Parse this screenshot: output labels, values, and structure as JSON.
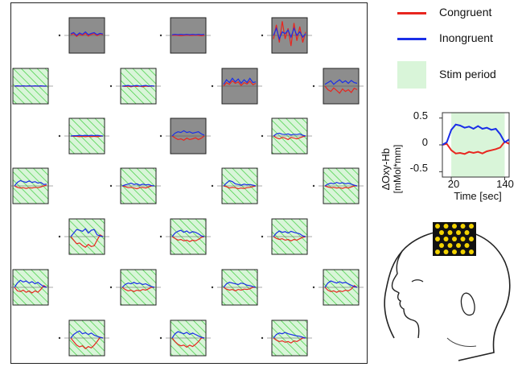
{
  "legend": {
    "congruent_label": "Congruent",
    "incongruent_label": "Inongruent",
    "stim_label": "Stim period"
  },
  "colors": {
    "congruent": "#e8261f",
    "incongruent": "#1a2ee8",
    "stim": "#d9f5d9",
    "stim_hatch": "#3fcf3f",
    "inactive_bg": "#8d8d8d",
    "probe_grid": "#111111",
    "probe_dot": "#f2d200"
  },
  "example_plot": {
    "ylabel_line1": "∆Oxy-Hb",
    "ylabel_line2": "[mMol*mm]",
    "xlabel": "Time [sec]",
    "ytick_labels": [
      "0.5",
      "0",
      "-0.5"
    ],
    "xtick_labels": [
      "20",
      "140"
    ]
  },
  "chart_data": {
    "type": "line",
    "title": "",
    "xlabel": "Time [sec]",
    "ylabel": "∆Oxy-Hb [mMol*mm]",
    "xlim": [
      0,
      150
    ],
    "ylim": [
      -0.6,
      0.6
    ],
    "stim_period": [
      20,
      140
    ],
    "x": [
      0,
      10,
      20,
      30,
      40,
      50,
      60,
      70,
      80,
      90,
      100,
      110,
      120,
      130,
      140,
      150
    ],
    "series": [
      {
        "name": "Congruent",
        "values": [
          0.0,
          0.02,
          -0.1,
          -0.16,
          -0.15,
          -0.17,
          -0.13,
          -0.15,
          -0.13,
          -0.16,
          -0.12,
          -0.1,
          -0.08,
          -0.05,
          0.06,
          0.02
        ]
      },
      {
        "name": "Inongruent",
        "values": [
          0.0,
          0.05,
          0.28,
          0.38,
          0.36,
          0.32,
          0.34,
          0.3,
          0.35,
          0.3,
          0.32,
          0.28,
          0.3,
          0.2,
          0.05,
          0.1
        ]
      }
    ],
    "channel_rows": [
      [
        {
          "active": false,
          "c": [
            0.02,
            0.05,
            -0.03,
            0.04,
            0.0,
            0.06,
            -0.02,
            0.03,
            0.05,
            -0.01,
            0.04,
            0.02
          ],
          "i": [
            0.05,
            0.08,
            0.0,
            0.07,
            0.03,
            0.1,
            0.02,
            0.06,
            0.08,
            0.02,
            0.06,
            0.04
          ]
        },
        {
          "active": false,
          "c": [
            0.0,
            0.01,
            0.0,
            -0.01,
            0.0,
            0.01,
            0.0,
            0.0,
            0.01,
            0.0,
            -0.01,
            0.0
          ],
          "i": [
            0.02,
            0.03,
            0.02,
            0.03,
            0.02,
            0.03,
            0.02,
            0.03,
            0.02,
            0.03,
            0.02,
            0.03
          ]
        },
        {
          "active": false,
          "c": [
            -0.1,
            0.3,
            -0.2,
            0.4,
            -0.1,
            0.2,
            -0.3,
            0.35,
            -0.15,
            0.25,
            -0.2,
            0.1
          ],
          "i": [
            0.0,
            0.2,
            -0.1,
            0.1,
            0.05,
            0.15,
            -0.05,
            0.2,
            0.0,
            0.1,
            -0.05,
            0.05
          ]
        }
      ],
      [
        {
          "active": true,
          "c": [
            0.0,
            0.0,
            0.0,
            0.0,
            0.0,
            0.0,
            0.0,
            0.0,
            0.0,
            0.0,
            0.0,
            0.0
          ],
          "i": [
            0.0,
            0.01,
            0.0,
            0.01,
            0.0,
            0.01,
            0.0,
            0.01,
            0.0,
            0.01,
            0.0,
            0.0
          ]
        },
        {
          "active": true,
          "c": [
            0.0,
            -0.01,
            0.0,
            -0.02,
            0.0,
            -0.01,
            0.0,
            -0.02,
            0.0,
            -0.01,
            0.0,
            0.0
          ],
          "i": [
            0.0,
            0.01,
            0.02,
            0.0,
            0.01,
            0.02,
            0.0,
            0.01,
            0.02,
            0.0,
            0.01,
            0.0
          ]
        },
        {
          "active": false,
          "c": [
            0.0,
            0.1,
            0.05,
            0.15,
            0.08,
            0.12,
            0.02,
            0.1,
            0.06,
            0.14,
            0.04,
            0.08
          ],
          "i": [
            0.05,
            0.18,
            0.1,
            0.22,
            0.12,
            0.2,
            0.08,
            0.18,
            0.1,
            0.22,
            0.1,
            0.12
          ]
        },
        {
          "active": false,
          "c": [
            0.0,
            -0.1,
            -0.15,
            -0.05,
            -0.12,
            -0.2,
            -0.08,
            -0.15,
            -0.1,
            -0.18,
            -0.06,
            -0.1
          ],
          "i": [
            0.05,
            0.1,
            0.15,
            0.05,
            0.12,
            0.18,
            0.1,
            0.15,
            0.08,
            0.16,
            0.1,
            0.08
          ]
        }
      ],
      [
        {
          "active": true,
          "c": [
            0.0,
            -0.01,
            -0.01,
            -0.02,
            -0.01,
            -0.02,
            -0.01,
            -0.02,
            -0.01,
            -0.02,
            -0.01,
            0.0
          ],
          "i": [
            0.0,
            0.01,
            0.01,
            0.02,
            0.01,
            0.02,
            0.01,
            0.02,
            0.01,
            0.02,
            0.01,
            0.0
          ]
        },
        {
          "active": false,
          "c": [
            0.0,
            -0.05,
            -0.1,
            -0.08,
            -0.12,
            -0.06,
            -0.1,
            -0.08,
            -0.05,
            -0.1,
            -0.06,
            0.0
          ],
          "i": [
            0.0,
            0.08,
            0.12,
            0.1,
            0.15,
            0.1,
            0.12,
            0.08,
            0.1,
            0.12,
            0.06,
            0.02
          ]
        },
        {
          "active": true,
          "c": [
            0.0,
            -0.05,
            -0.08,
            -0.04,
            -0.06,
            -0.1,
            -0.04,
            -0.06,
            -0.08,
            -0.05,
            -0.02,
            0.0
          ],
          "i": [
            0.0,
            0.06,
            0.08,
            0.05,
            0.04,
            0.06,
            0.03,
            0.05,
            0.04,
            0.06,
            0.02,
            0.0
          ]
        }
      ],
      [
        {
          "active": true,
          "c": [
            0.0,
            -0.04,
            -0.06,
            -0.05,
            -0.07,
            -0.05,
            -0.06,
            -0.04,
            -0.05,
            -0.03,
            0.0,
            0.02
          ],
          "i": [
            0.0,
            0.1,
            0.15,
            0.12,
            0.1,
            0.14,
            0.1,
            0.12,
            0.08,
            0.1,
            0.04,
            0.05
          ]
        },
        {
          "active": true,
          "c": [
            0.0,
            -0.02,
            -0.05,
            -0.04,
            -0.06,
            -0.08,
            -0.05,
            -0.04,
            -0.06,
            -0.03,
            0.0,
            0.0
          ],
          "i": [
            0.0,
            0.03,
            0.05,
            0.08,
            0.04,
            0.06,
            0.02,
            0.05,
            0.03,
            0.04,
            0.01,
            0.0
          ]
        },
        {
          "active": true,
          "c": [
            0.0,
            -0.02,
            -0.06,
            -0.04,
            -0.05,
            -0.08,
            -0.06,
            -0.07,
            -0.05,
            -0.04,
            -0.02,
            0.0
          ],
          "i": [
            0.0,
            0.08,
            0.15,
            0.12,
            0.06,
            0.04,
            0.02,
            0.05,
            0.03,
            0.04,
            0.02,
            0.0
          ]
        },
        {
          "active": true,
          "c": [
            0.0,
            -0.03,
            -0.05,
            -0.04,
            -0.06,
            -0.05,
            -0.07,
            -0.04,
            -0.06,
            -0.03,
            0.0,
            0.0
          ],
          "i": [
            0.0,
            0.05,
            0.08,
            0.06,
            0.1,
            0.07,
            0.09,
            0.06,
            0.08,
            0.05,
            0.02,
            0.0
          ]
        }
      ],
      [
        {
          "active": true,
          "c": [
            0.0,
            -0.1,
            -0.2,
            -0.18,
            -0.25,
            -0.3,
            -0.22,
            -0.28,
            -0.26,
            -0.1,
            0.05,
            0.0
          ],
          "i": [
            0.0,
            0.1,
            0.2,
            0.18,
            0.15,
            0.22,
            0.1,
            0.18,
            0.2,
            0.05,
            0.02,
            0.0
          ]
        },
        {
          "active": true,
          "c": [
            0.0,
            -0.05,
            -0.1,
            -0.08,
            -0.12,
            -0.1,
            -0.14,
            -0.1,
            -0.12,
            -0.08,
            -0.02,
            0.0
          ],
          "i": [
            0.0,
            0.1,
            0.15,
            0.18,
            0.12,
            0.16,
            0.1,
            0.14,
            0.12,
            0.08,
            0.02,
            0.0
          ]
        },
        {
          "active": true,
          "c": [
            0.0,
            -0.05,
            -0.08,
            -0.06,
            -0.1,
            -0.08,
            -0.12,
            -0.08,
            -0.1,
            -0.06,
            -0.02,
            0.0
          ],
          "i": [
            0.0,
            0.1,
            0.16,
            0.12,
            0.14,
            0.1,
            0.15,
            0.12,
            0.1,
            0.08,
            0.02,
            0.0
          ]
        }
      ],
      [
        {
          "active": true,
          "c": [
            0.0,
            -0.1,
            -0.12,
            -0.08,
            -0.14,
            -0.1,
            -0.16,
            -0.1,
            -0.14,
            -0.06,
            0.05,
            0.0
          ],
          "i": [
            0.0,
            0.12,
            0.2,
            0.15,
            0.18,
            0.12,
            0.16,
            0.1,
            0.14,
            0.08,
            0.02,
            0.0
          ]
        },
        {
          "active": true,
          "c": [
            0.0,
            -0.06,
            -0.1,
            -0.08,
            -0.12,
            -0.08,
            -0.1,
            -0.06,
            -0.08,
            -0.04,
            0.0,
            0.0
          ],
          "i": [
            0.0,
            0.08,
            0.12,
            0.1,
            0.14,
            0.1,
            0.12,
            0.08,
            0.1,
            0.06,
            0.02,
            0.0
          ]
        },
        {
          "active": true,
          "c": [
            0.0,
            -0.05,
            -0.08,
            -0.06,
            -0.1,
            -0.06,
            -0.08,
            -0.05,
            -0.06,
            -0.04,
            0.0,
            0.0
          ],
          "i": [
            0.0,
            0.1,
            0.14,
            0.12,
            0.1,
            0.08,
            0.12,
            0.1,
            0.06,
            0.05,
            0.02,
            0.0
          ]
        },
        {
          "active": true,
          "c": [
            0.0,
            -0.08,
            -0.12,
            -0.1,
            -0.14,
            -0.1,
            -0.12,
            -0.08,
            -0.1,
            -0.05,
            0.05,
            0.0
          ],
          "i": [
            0.0,
            0.12,
            0.18,
            0.15,
            0.12,
            0.16,
            0.12,
            0.14,
            0.1,
            0.06,
            0.02,
            0.0
          ]
        }
      ],
      [
        {
          "active": true,
          "c": [
            0.0,
            -0.1,
            -0.2,
            -0.25,
            -0.22,
            -0.3,
            -0.24,
            -0.28,
            -0.2,
            -0.1,
            0.02,
            0.0
          ],
          "i": [
            0.0,
            0.1,
            0.16,
            0.2,
            0.12,
            0.15,
            0.1,
            0.14,
            0.08,
            0.05,
            0.02,
            0.0
          ]
        },
        {
          "active": true,
          "c": [
            0.0,
            -0.1,
            -0.18,
            -0.22,
            -0.2,
            -0.26,
            -0.2,
            -0.24,
            -0.18,
            -0.1,
            0.0,
            0.0
          ],
          "i": [
            0.0,
            0.12,
            0.18,
            0.15,
            0.12,
            0.16,
            0.1,
            0.14,
            0.1,
            0.06,
            0.02,
            0.0
          ]
        },
        {
          "active": true,
          "c": [
            0.0,
            -0.06,
            -0.1,
            -0.08,
            -0.12,
            -0.1,
            -0.14,
            -0.08,
            -0.1,
            -0.05,
            0.0,
            0.0
          ],
          "i": [
            0.0,
            0.1,
            0.14,
            0.12,
            0.16,
            0.12,
            0.1,
            0.08,
            0.06,
            0.05,
            0.02,
            0.0
          ]
        }
      ]
    ]
  }
}
